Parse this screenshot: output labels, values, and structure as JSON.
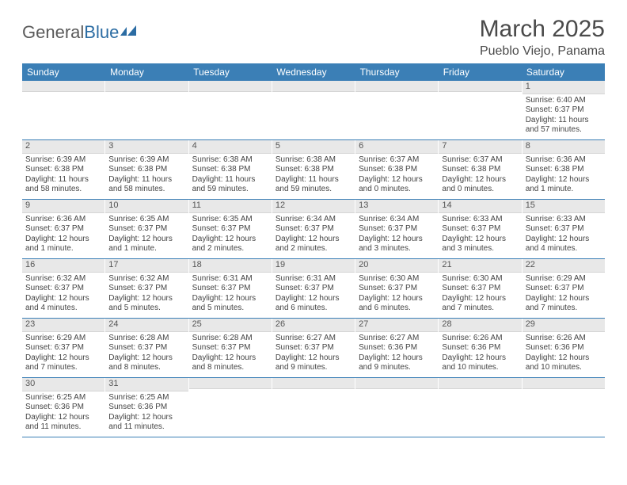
{
  "logo": {
    "general": "General",
    "blue": "Blue"
  },
  "title": "March 2025",
  "location": "Pueblo Viejo, Panama",
  "colors": {
    "header_bg": "#3b7fb6",
    "header_text": "#ffffff",
    "daynum_bg": "#e8e8e8",
    "text": "#444444",
    "rule": "#3b7fb6"
  },
  "dow": [
    "Sunday",
    "Monday",
    "Tuesday",
    "Wednesday",
    "Thursday",
    "Friday",
    "Saturday"
  ],
  "weeks": [
    [
      {
        "n": "",
        "sr": "",
        "ss": "",
        "dl": ""
      },
      {
        "n": "",
        "sr": "",
        "ss": "",
        "dl": ""
      },
      {
        "n": "",
        "sr": "",
        "ss": "",
        "dl": ""
      },
      {
        "n": "",
        "sr": "",
        "ss": "",
        "dl": ""
      },
      {
        "n": "",
        "sr": "",
        "ss": "",
        "dl": ""
      },
      {
        "n": "",
        "sr": "",
        "ss": "",
        "dl": ""
      },
      {
        "n": "1",
        "sr": "Sunrise: 6:40 AM",
        "ss": "Sunset: 6:37 PM",
        "dl": "Daylight: 11 hours and 57 minutes."
      }
    ],
    [
      {
        "n": "2",
        "sr": "Sunrise: 6:39 AM",
        "ss": "Sunset: 6:38 PM",
        "dl": "Daylight: 11 hours and 58 minutes."
      },
      {
        "n": "3",
        "sr": "Sunrise: 6:39 AM",
        "ss": "Sunset: 6:38 PM",
        "dl": "Daylight: 11 hours and 58 minutes."
      },
      {
        "n": "4",
        "sr": "Sunrise: 6:38 AM",
        "ss": "Sunset: 6:38 PM",
        "dl": "Daylight: 11 hours and 59 minutes."
      },
      {
        "n": "5",
        "sr": "Sunrise: 6:38 AM",
        "ss": "Sunset: 6:38 PM",
        "dl": "Daylight: 11 hours and 59 minutes."
      },
      {
        "n": "6",
        "sr": "Sunrise: 6:37 AM",
        "ss": "Sunset: 6:38 PM",
        "dl": "Daylight: 12 hours and 0 minutes."
      },
      {
        "n": "7",
        "sr": "Sunrise: 6:37 AM",
        "ss": "Sunset: 6:38 PM",
        "dl": "Daylight: 12 hours and 0 minutes."
      },
      {
        "n": "8",
        "sr": "Sunrise: 6:36 AM",
        "ss": "Sunset: 6:38 PM",
        "dl": "Daylight: 12 hours and 1 minute."
      }
    ],
    [
      {
        "n": "9",
        "sr": "Sunrise: 6:36 AM",
        "ss": "Sunset: 6:37 PM",
        "dl": "Daylight: 12 hours and 1 minute."
      },
      {
        "n": "10",
        "sr": "Sunrise: 6:35 AM",
        "ss": "Sunset: 6:37 PM",
        "dl": "Daylight: 12 hours and 1 minute."
      },
      {
        "n": "11",
        "sr": "Sunrise: 6:35 AM",
        "ss": "Sunset: 6:37 PM",
        "dl": "Daylight: 12 hours and 2 minutes."
      },
      {
        "n": "12",
        "sr": "Sunrise: 6:34 AM",
        "ss": "Sunset: 6:37 PM",
        "dl": "Daylight: 12 hours and 2 minutes."
      },
      {
        "n": "13",
        "sr": "Sunrise: 6:34 AM",
        "ss": "Sunset: 6:37 PM",
        "dl": "Daylight: 12 hours and 3 minutes."
      },
      {
        "n": "14",
        "sr": "Sunrise: 6:33 AM",
        "ss": "Sunset: 6:37 PM",
        "dl": "Daylight: 12 hours and 3 minutes."
      },
      {
        "n": "15",
        "sr": "Sunrise: 6:33 AM",
        "ss": "Sunset: 6:37 PM",
        "dl": "Daylight: 12 hours and 4 minutes."
      }
    ],
    [
      {
        "n": "16",
        "sr": "Sunrise: 6:32 AM",
        "ss": "Sunset: 6:37 PM",
        "dl": "Daylight: 12 hours and 4 minutes."
      },
      {
        "n": "17",
        "sr": "Sunrise: 6:32 AM",
        "ss": "Sunset: 6:37 PM",
        "dl": "Daylight: 12 hours and 5 minutes."
      },
      {
        "n": "18",
        "sr": "Sunrise: 6:31 AM",
        "ss": "Sunset: 6:37 PM",
        "dl": "Daylight: 12 hours and 5 minutes."
      },
      {
        "n": "19",
        "sr": "Sunrise: 6:31 AM",
        "ss": "Sunset: 6:37 PM",
        "dl": "Daylight: 12 hours and 6 minutes."
      },
      {
        "n": "20",
        "sr": "Sunrise: 6:30 AM",
        "ss": "Sunset: 6:37 PM",
        "dl": "Daylight: 12 hours and 6 minutes."
      },
      {
        "n": "21",
        "sr": "Sunrise: 6:30 AM",
        "ss": "Sunset: 6:37 PM",
        "dl": "Daylight: 12 hours and 7 minutes."
      },
      {
        "n": "22",
        "sr": "Sunrise: 6:29 AM",
        "ss": "Sunset: 6:37 PM",
        "dl": "Daylight: 12 hours and 7 minutes."
      }
    ],
    [
      {
        "n": "23",
        "sr": "Sunrise: 6:29 AM",
        "ss": "Sunset: 6:37 PM",
        "dl": "Daylight: 12 hours and 7 minutes."
      },
      {
        "n": "24",
        "sr": "Sunrise: 6:28 AM",
        "ss": "Sunset: 6:37 PM",
        "dl": "Daylight: 12 hours and 8 minutes."
      },
      {
        "n": "25",
        "sr": "Sunrise: 6:28 AM",
        "ss": "Sunset: 6:37 PM",
        "dl": "Daylight: 12 hours and 8 minutes."
      },
      {
        "n": "26",
        "sr": "Sunrise: 6:27 AM",
        "ss": "Sunset: 6:37 PM",
        "dl": "Daylight: 12 hours and 9 minutes."
      },
      {
        "n": "27",
        "sr": "Sunrise: 6:27 AM",
        "ss": "Sunset: 6:36 PM",
        "dl": "Daylight: 12 hours and 9 minutes."
      },
      {
        "n": "28",
        "sr": "Sunrise: 6:26 AM",
        "ss": "Sunset: 6:36 PM",
        "dl": "Daylight: 12 hours and 10 minutes."
      },
      {
        "n": "29",
        "sr": "Sunrise: 6:26 AM",
        "ss": "Sunset: 6:36 PM",
        "dl": "Daylight: 12 hours and 10 minutes."
      }
    ],
    [
      {
        "n": "30",
        "sr": "Sunrise: 6:25 AM",
        "ss": "Sunset: 6:36 PM",
        "dl": "Daylight: 12 hours and 11 minutes."
      },
      {
        "n": "31",
        "sr": "Sunrise: 6:25 AM",
        "ss": "Sunset: 6:36 PM",
        "dl": "Daylight: 12 hours and 11 minutes."
      },
      {
        "n": "",
        "sr": "",
        "ss": "",
        "dl": ""
      },
      {
        "n": "",
        "sr": "",
        "ss": "",
        "dl": ""
      },
      {
        "n": "",
        "sr": "",
        "ss": "",
        "dl": ""
      },
      {
        "n": "",
        "sr": "",
        "ss": "",
        "dl": ""
      },
      {
        "n": "",
        "sr": "",
        "ss": "",
        "dl": ""
      }
    ]
  ]
}
